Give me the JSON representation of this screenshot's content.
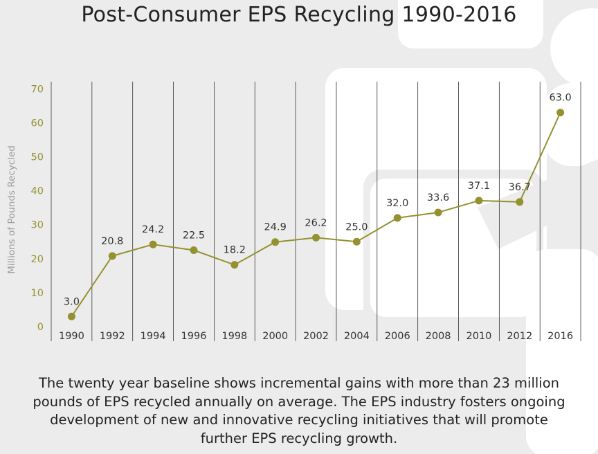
{
  "title": "Post-Consumer EPS Recycling 1990-2016",
  "caption": "The twenty year baseline shows incremental gains with more than 23 million pounds of EPS recycled annually on average. The EPS industry fosters ongoing development of new and innovative recycling initiatives that will promote further EPS recycling growth.",
  "colors": {
    "series": "#959130",
    "tick_label": "#959130",
    "axis_label": "#9c9c9c",
    "grid": "#333333",
    "background": "#ececec",
    "watermark": "#ffffff"
  },
  "chart_data": {
    "type": "line",
    "title": "Post-Consumer EPS Recycling 1990-2016",
    "xlabel": "",
    "ylabel": "Millions of Pounds Recycled",
    "ylim": [
      0,
      70
    ],
    "yticks": [
      0,
      10,
      20,
      30,
      40,
      50,
      60,
      70
    ],
    "grid": "vertical",
    "categories": [
      "1990",
      "1992",
      "1994",
      "1996",
      "1998",
      "2000",
      "2002",
      "2004",
      "2006",
      "2008",
      "2010",
      "2012",
      "2016"
    ],
    "series": [
      {
        "values": [
          3.0,
          20.8,
          24.2,
          22.5,
          18.2,
          24.9,
          26.2,
          25.0,
          32.0,
          33.6,
          37.1,
          36.7,
          63.0
        ],
        "value_labels": [
          "3.0",
          "20.8",
          "24.2",
          "22.5",
          "18.2",
          "24.9",
          "26.2",
          "25.0",
          "32.0",
          "33.6",
          "37.1",
          "36.7",
          "63.0"
        ]
      }
    ]
  }
}
